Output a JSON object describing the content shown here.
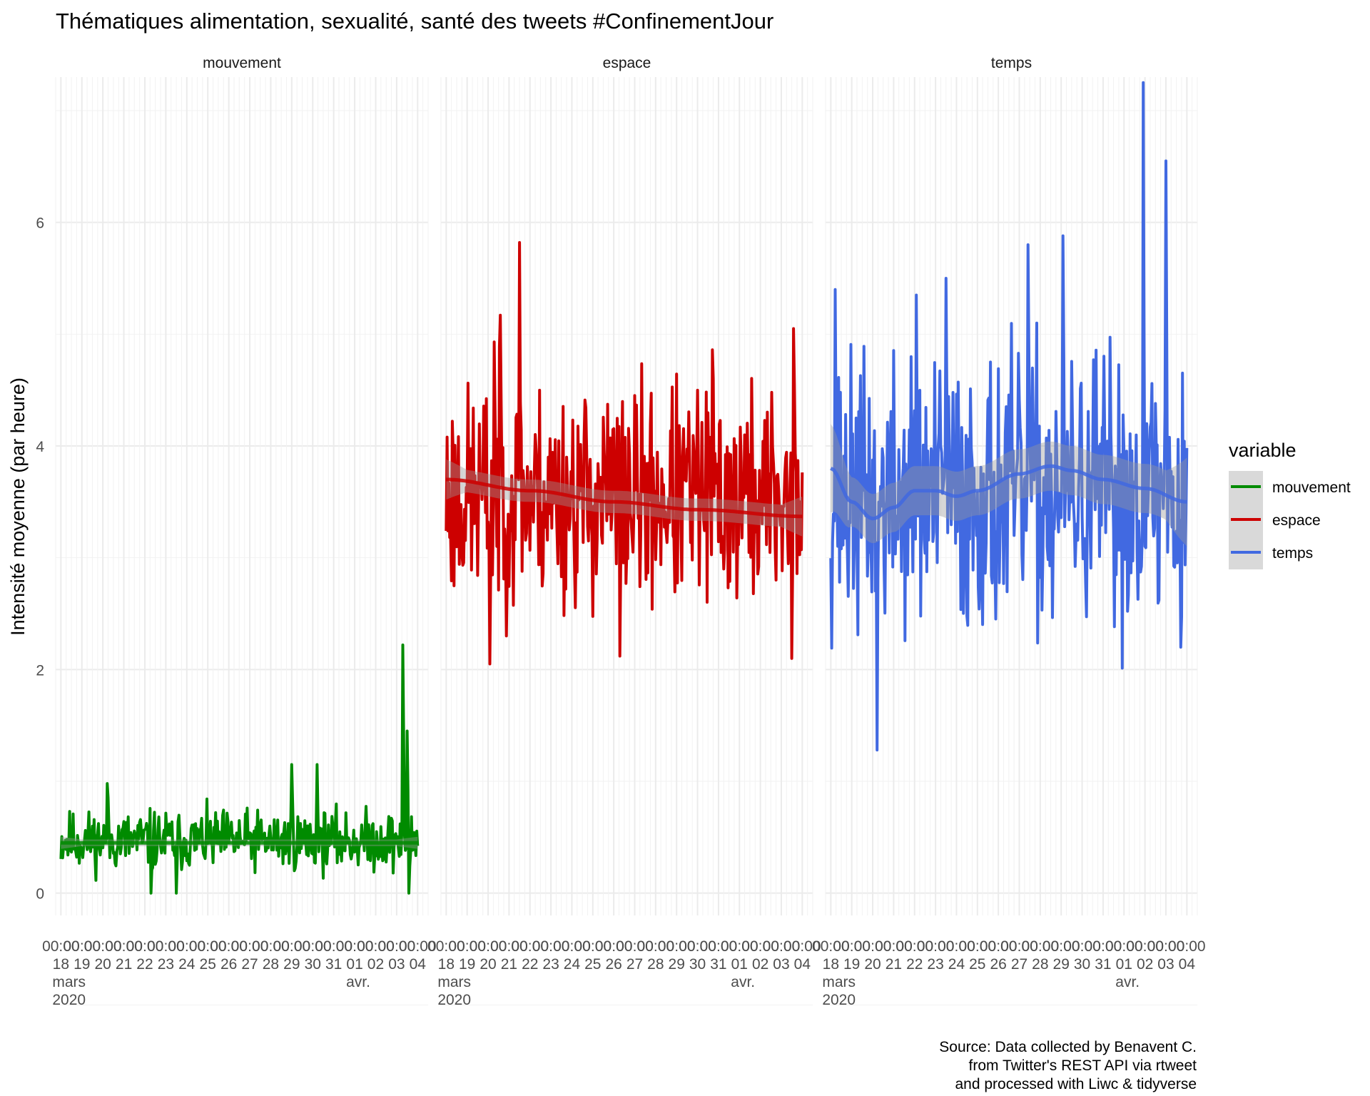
{
  "title": "Thématiques alimentation, sexualité, santé des tweets #ConfinementJour",
  "ylabel": "Intensité moyenne (par heure)",
  "caption": [
    "Source: Data collected by Benavent C.",
    "from Twitter's REST API via rtweet",
    "and processed with Liwc & tidyverse"
  ],
  "legend": {
    "title": "variable",
    "items": [
      {
        "label": "mouvement",
        "color": "#008B00"
      },
      {
        "label": "espace",
        "color": "#CD0000"
      },
      {
        "label": "temps",
        "color": "#4169E1"
      }
    ]
  },
  "x_axis": {
    "day_labels": [
      "18",
      "19",
      "20",
      "21",
      "22",
      "23",
      "24",
      "25",
      "26",
      "27",
      "28",
      "29",
      "30",
      "31",
      "01",
      "02",
      "03",
      "04"
    ],
    "hour_label": "00:00",
    "month_labels": [
      {
        "day_index": 0,
        "text": "mars"
      },
      {
        "day_index": 14,
        "text": "avr."
      }
    ],
    "year_label": "2020"
  },
  "chart_data": {
    "type": "line",
    "x_range": [
      "2020-03-17T18:00",
      "2020-04-04T12:00"
    ],
    "ylim": [
      -0.2,
      7.3
    ],
    "y_ticks": [
      0,
      2,
      4,
      6
    ],
    "grid": true,
    "legend_position": "right",
    "facets": [
      {
        "name": "mouvement",
        "color": "#008B00",
        "series": {
          "start": "2020-03-18T00:00",
          "end": "2020-04-04T00:00",
          "base": 0.47,
          "noise": 0.13,
          "seed": 11,
          "min": 0,
          "max": 2.25,
          "peaks": [
            [
              2.2,
              0.98
            ],
            [
              4.3,
              0.0
            ],
            [
              5.5,
              0.0
            ],
            [
              11.0,
              1.15
            ],
            [
              12.2,
              1.15
            ],
            [
              16.3,
              2.22
            ],
            [
              16.5,
              1.45
            ],
            [
              16.6,
              0.0
            ]
          ]
        },
        "smooth": [
          [
            0.0,
            0.45
          ],
          [
            17.0,
            0.45
          ]
        ],
        "ribbon_halfwidth": 0.03
      },
      {
        "name": "espace",
        "color": "#CD0000",
        "series": {
          "start": "2020-03-18T00:00",
          "end": "2020-04-04T00:00",
          "base": 3.55,
          "noise": 0.48,
          "seed": 23,
          "min": 2.05,
          "max": 5.82,
          "peaks": [
            [
              2.1,
              2.05
            ],
            [
              2.3,
              4.93
            ],
            [
              2.6,
              5.17
            ],
            [
              3.5,
              5.82
            ],
            [
              8.3,
              2.12
            ],
            [
              12.7,
              4.86
            ],
            [
              16.6,
              5.05
            ],
            [
              16.5,
              2.1
            ]
          ]
        },
        "smooth": [
          [
            0.0,
            3.7
          ],
          [
            4.0,
            3.6
          ],
          [
            8.0,
            3.5
          ],
          [
            12.0,
            3.43
          ],
          [
            17.0,
            3.37
          ]
        ],
        "ribbon_halfwidth": 0.1
      },
      {
        "name": "temps",
        "color": "#4169E1",
        "series": {
          "start": "2020-03-18T00:00",
          "end": "2020-04-04T00:00",
          "base": 3.55,
          "noise": 0.6,
          "seed": 37,
          "min": 1.28,
          "max": 7.25,
          "peaks": [
            [
              0.2,
              5.4
            ],
            [
              2.2,
              1.28
            ],
            [
              4.1,
              5.35
            ],
            [
              5.5,
              5.5
            ],
            [
              9.4,
              5.8
            ],
            [
              11.1,
              5.88
            ],
            [
              14.9,
              7.25
            ],
            [
              16.0,
              6.55
            ],
            [
              16.7,
              2.2
            ]
          ]
        },
        "smooth": [
          [
            0.0,
            3.8
          ],
          [
            1.0,
            3.5
          ],
          [
            2.0,
            3.35
          ],
          [
            3.0,
            3.45
          ],
          [
            4.0,
            3.6
          ],
          [
            5.0,
            3.6
          ],
          [
            6.0,
            3.55
          ],
          [
            7.0,
            3.6
          ],
          [
            9.0,
            3.75
          ],
          [
            10.5,
            3.82
          ],
          [
            11.5,
            3.78
          ],
          [
            13.0,
            3.7
          ],
          [
            15.0,
            3.62
          ],
          [
            17.0,
            3.5
          ]
        ],
        "ribbon_halfwidth": 0.22
      }
    ]
  }
}
